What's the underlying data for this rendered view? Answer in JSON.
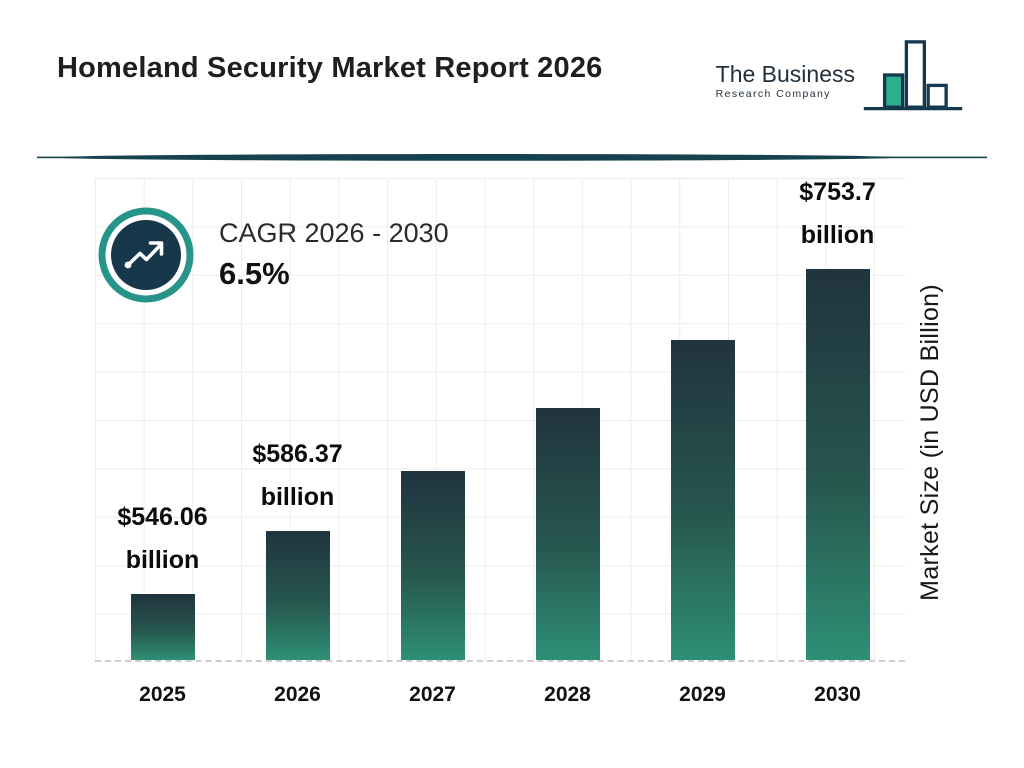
{
  "header": {
    "title": "Homeland Security Market Report 2026",
    "logo": {
      "line1": "The Business",
      "line2": "Research Company"
    }
  },
  "cagr": {
    "label": "CAGR 2026 - 2030",
    "value": "6.5%"
  },
  "chart_data": {
    "type": "bar",
    "title": "Homeland Security Market Report 2026",
    "categories": [
      "2025",
      "2026",
      "2027",
      "2028",
      "2029",
      "2030"
    ],
    "values": [
      546.06,
      586.37,
      624.5,
      665.1,
      708.3,
      753.7
    ],
    "bar_labels": [
      {
        "value": "$546.06",
        "unit": "billion"
      },
      {
        "value": "$586.37",
        "unit": "billion"
      },
      null,
      null,
      null,
      {
        "value": "$753.7",
        "unit": "billion"
      }
    ],
    "xlabel": "",
    "ylabel": "Market Size (in USD Billion)",
    "ylim": [
      504,
      812
    ],
    "grid": true,
    "legend": false,
    "colors": {
      "bar_top": "#20333f",
      "bar_bottom": "#2e8f75",
      "accent_teal": "#27948a",
      "accent_navy": "#17374a"
    }
  }
}
